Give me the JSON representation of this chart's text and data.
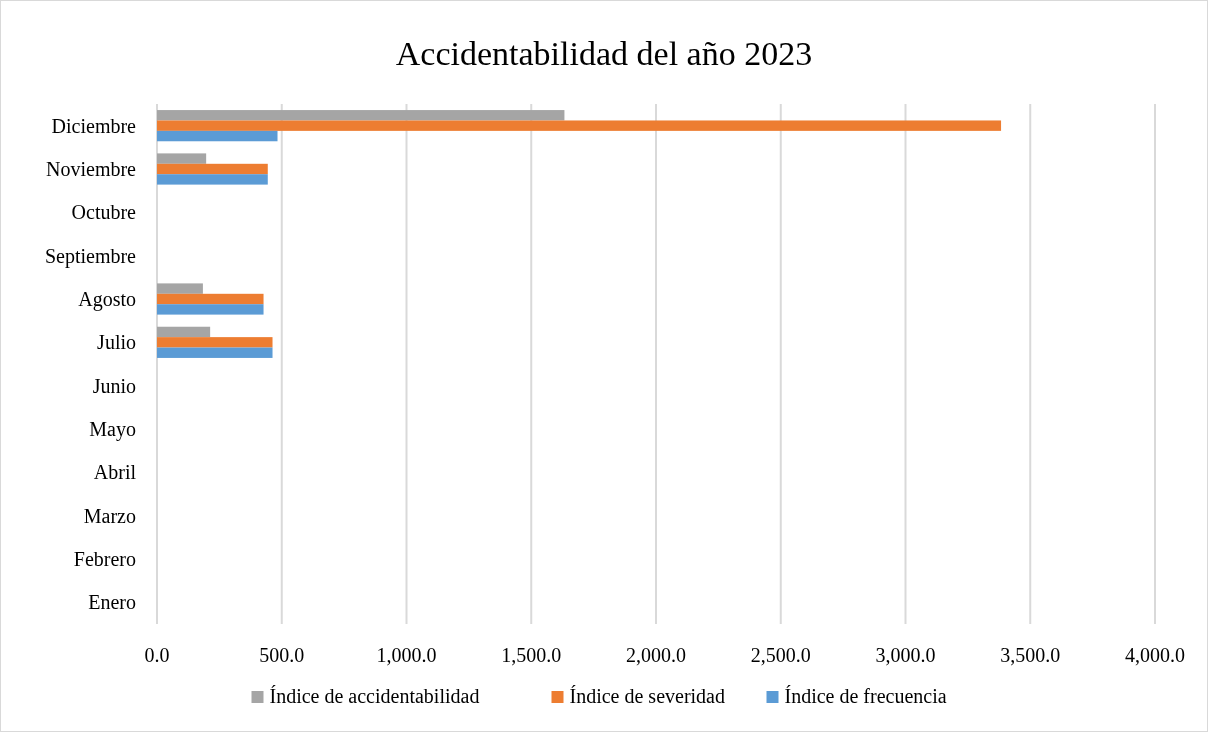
{
  "chart_data": {
    "type": "bar",
    "orientation": "horizontal",
    "title": "Accidentabilidad del año 2023",
    "categories": [
      "Diciembre",
      "Noviembre",
      "Octubre",
      "Septiembre",
      "Agosto",
      "Julio",
      "Junio",
      "Mayo",
      "Abril",
      "Marzo",
      "Febrero",
      "Enero"
    ],
    "series": [
      {
        "name": "Índice de accidentabilidad",
        "color": "#a5a5a5",
        "values": [
          1633,
          197,
          null,
          null,
          184,
          213,
          null,
          null,
          null,
          null,
          null,
          null
        ]
      },
      {
        "name": "Índice de severidad",
        "color": "#ed7d31",
        "values": [
          3383,
          444,
          null,
          null,
          427,
          463,
          null,
          null,
          null,
          null,
          null,
          null
        ]
      },
      {
        "name": "Índice de frecuencia",
        "color": "#5b9bd5",
        "values": [
          483,
          444,
          null,
          null,
          427,
          463,
          null,
          null,
          null,
          null,
          null,
          null
        ]
      }
    ],
    "xlim": [
      0,
      4000
    ],
    "xticks": [
      {
        "value": 0,
        "label": "0.0"
      },
      {
        "value": 500,
        "label": "500.0"
      },
      {
        "value": 1000,
        "label": "1,000.0"
      },
      {
        "value": 1500,
        "label": "1,500.0"
      },
      {
        "value": 2000,
        "label": "2,000.0"
      },
      {
        "value": 2500,
        "label": "2,500.0"
      },
      {
        "value": 3000,
        "label": "3,000.0"
      },
      {
        "value": 3500,
        "label": "3,500.0"
      },
      {
        "value": 4000,
        "label": "4,000.0"
      }
    ],
    "grid": "x",
    "legend": "bottom"
  }
}
